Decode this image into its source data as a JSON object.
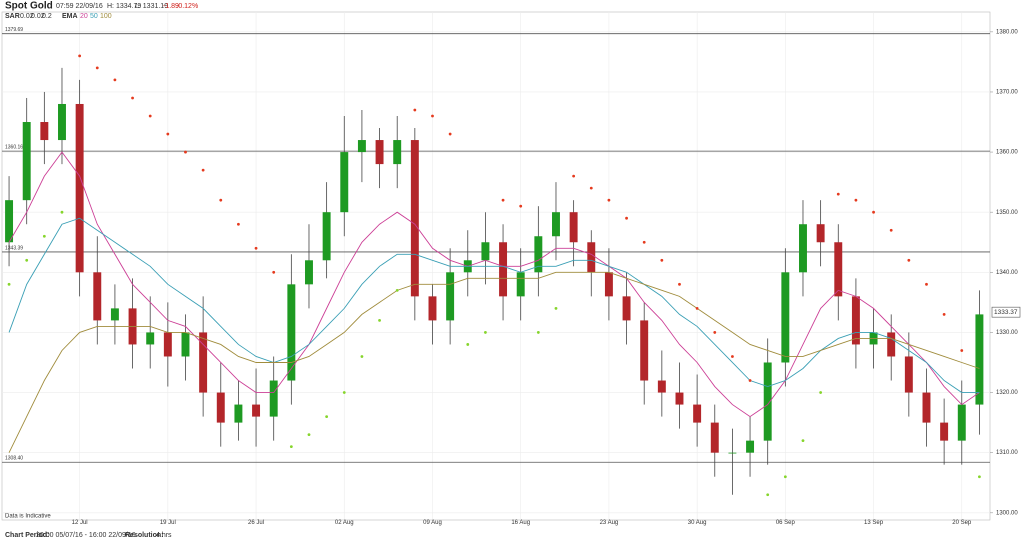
{
  "chart_data": {
    "type": "candlestick",
    "title": "Spot Gold",
    "header": {
      "time": "07:59 22/09/16",
      "high": "H: 1334.79",
      "low": "L: 1331.19",
      "change": "-1.89",
      "change_pct": "-0.12%",
      "sar_label": "SAR",
      "sar_params": [
        "0.02",
        "0.02",
        "0.2"
      ],
      "ema_label": "EMA"
    },
    "annotation": "Data is Indicative",
    "footer": {
      "period_label": "Chart Period:",
      "period": "20:00 05/07/16 - 16:00 22/09/16",
      "resolution_label": "Resolution:",
      "resolution": "4 hrs"
    },
    "xlim": [
      0.6,
      56.6
    ],
    "xticks": [
      {
        "value": 5,
        "label": "12 Jul"
      },
      {
        "value": 10,
        "label": "19 Jul"
      },
      {
        "value": 15,
        "label": "26 Jul"
      },
      {
        "value": 20,
        "label": "02 Aug"
      },
      {
        "value": 25,
        "label": "09 Aug"
      },
      {
        "value": 30,
        "label": "16 Aug"
      },
      {
        "value": 35,
        "label": "23 Aug"
      },
      {
        "value": 40,
        "label": "30 Aug"
      },
      {
        "value": 45,
        "label": "06 Sep"
      },
      {
        "value": 50,
        "label": "13 Sep"
      },
      {
        "value": 55,
        "label": "20 Sep"
      }
    ],
    "ylim": [
      1298.8,
      1383.3
    ],
    "yticks": [
      {
        "value": 1300,
        "label": "1300.00"
      },
      {
        "value": 1310,
        "label": "1310.00"
      },
      {
        "value": 1320,
        "label": "1320.00"
      },
      {
        "value": 1330,
        "label": "1330.00"
      },
      {
        "value": 1340,
        "label": "1340.00"
      },
      {
        "value": 1350,
        "label": "1350.00"
      },
      {
        "value": 1360,
        "label": "1360.00"
      },
      {
        "value": 1370,
        "label": "1370.00"
      },
      {
        "value": 1380,
        "label": "1380.00"
      }
    ],
    "grid": true,
    "levels": [
      1379.69,
      1360.16,
      1343.39,
      {
        "value": 1308.4,
        "label": "1308.40"
      }
    ],
    "last_price": 1333.37,
    "up_color": "#1e9a22",
    "down_color": "#b3262a",
    "x": [
      1,
      2,
      3,
      4,
      5,
      6,
      7,
      8,
      9,
      10,
      11,
      12,
      13,
      14,
      15,
      16,
      17,
      18,
      19,
      20,
      21,
      22,
      23,
      24,
      25,
      26,
      27,
      28,
      29,
      30,
      31,
      32,
      33,
      34,
      35,
      36,
      37,
      38,
      39,
      40,
      41,
      42,
      43,
      44,
      45,
      46,
      47,
      48,
      49,
      50,
      51,
      52,
      53,
      54,
      55,
      56
    ],
    "open": [
      1345,
      1352,
      1365,
      1362,
      1368,
      1340,
      1332,
      1334,
      1328,
      1330,
      1326,
      1330,
      1320,
      1315,
      1318,
      1316,
      1322,
      1338,
      1342,
      1350,
      1360,
      1362,
      1358,
      1362,
      1336,
      1332,
      1340,
      1342,
      1345,
      1336,
      1340,
      1346,
      1350,
      1345,
      1340,
      1336,
      1332,
      1322,
      1320,
      1318,
      1315,
      1310,
      1310,
      1312,
      1325,
      1340,
      1348,
      1345,
      1336,
      1328,
      1330,
      1326,
      1320,
      1315,
      1312,
      1318
    ],
    "high": [
      1356,
      1369,
      1370,
      1374,
      1372,
      1346,
      1338,
      1339,
      1336,
      1335,
      1333,
      1336,
      1325,
      1322,
      1324,
      1326,
      1343,
      1348,
      1355,
      1366,
      1367,
      1364,
      1366,
      1364,
      1338,
      1344,
      1347,
      1350,
      1348,
      1344,
      1351,
      1355,
      1352,
      1347,
      1344,
      1340,
      1335,
      1327,
      1325,
      1323,
      1318,
      1314,
      1316,
      1329,
      1344,
      1352,
      1352,
      1348,
      1339,
      1334,
      1333,
      1330,
      1324,
      1319,
      1322,
      1337
    ],
    "low": [
      1341,
      1348,
      1358,
      1358,
      1336,
      1328,
      1328,
      1324,
      1324,
      1321,
      1322,
      1316,
      1311,
      1312,
      1311,
      1312,
      1318,
      1334,
      1339,
      1346,
      1355,
      1354,
      1354,
      1332,
      1328,
      1328,
      1336,
      1338,
      1332,
      1332,
      1336,
      1342,
      1341,
      1336,
      1332,
      1328,
      1318,
      1316,
      1314,
      1311,
      1306,
      1303,
      1306,
      1308,
      1321,
      1336,
      1341,
      1332,
      1324,
      1324,
      1322,
      1316,
      1311,
      1308,
      1308,
      1313
    ],
    "close": [
      1352,
      1365,
      1362,
      1368,
      1340,
      1332,
      1334,
      1328,
      1330,
      1326,
      1330,
      1320,
      1315,
      1318,
      1316,
      1322,
      1338,
      1342,
      1350,
      1360,
      1362,
      1358,
      1362,
      1336,
      1332,
      1340,
      1342,
      1345,
      1336,
      1340,
      1346,
      1350,
      1345,
      1340,
      1336,
      1332,
      1322,
      1320,
      1318,
      1315,
      1310,
      1310,
      1312,
      1325,
      1340,
      1348,
      1345,
      1336,
      1328,
      1330,
      1326,
      1320,
      1315,
      1312,
      1318,
      1333
    ],
    "series": [
      {
        "name": "20",
        "color": "#cc3f96",
        "values": [
          1345,
          1350,
          1356,
          1360,
          1356,
          1348,
          1343,
          1338,
          1335,
          1332,
          1331,
          1328,
          1325,
          1322,
          1320,
          1320,
          1324,
          1328,
          1334,
          1340,
          1345,
          1348,
          1350,
          1348,
          1344,
          1342,
          1341,
          1342,
          1341,
          1341,
          1342,
          1344,
          1344,
          1343,
          1341,
          1339,
          1335,
          1332,
          1328,
          1325,
          1321,
          1318,
          1316,
          1318,
          1322,
          1328,
          1334,
          1337,
          1336,
          1334,
          1331,
          1328,
          1325,
          1321,
          1318,
          1320
        ]
      },
      {
        "name": "50",
        "color": "#3a9fb5",
        "values": [
          1330,
          1338,
          1343,
          1348,
          1349,
          1347,
          1345,
          1343,
          1341,
          1338,
          1336,
          1334,
          1331,
          1328,
          1326,
          1325,
          1326,
          1328,
          1331,
          1334,
          1338,
          1341,
          1343,
          1343,
          1342,
          1341,
          1341,
          1341,
          1341,
          1340,
          1341,
          1341,
          1342,
          1342,
          1341,
          1340,
          1338,
          1336,
          1333,
          1331,
          1328,
          1325,
          1322,
          1321,
          1322,
          1324,
          1327,
          1329,
          1330,
          1330,
          1329,
          1327,
          1325,
          1322,
          1320,
          1320
        ]
      },
      {
        "name": "100",
        "color": "#a08c3c",
        "values": [
          1310,
          1316,
          1322,
          1327,
          1330,
          1331,
          1331,
          1331,
          1331,
          1330,
          1330,
          1329,
          1328,
          1326,
          1325,
          1325,
          1325,
          1326,
          1328,
          1330,
          1333,
          1335,
          1337,
          1338,
          1338,
          1338,
          1339,
          1339,
          1339,
          1339,
          1339,
          1340,
          1340,
          1340,
          1340,
          1339,
          1338,
          1337,
          1336,
          1334,
          1332,
          1330,
          1328,
          1327,
          1326,
          1326,
          1327,
          1328,
          1329,
          1329,
          1329,
          1328,
          1327,
          1326,
          1325,
          1324
        ]
      }
    ],
    "sar": {
      "color_above": "#e53a1e",
      "color_below": "#86d52c",
      "values": [
        1338,
        1342,
        1346,
        1350,
        1376,
        1374,
        1372,
        1369,
        1366,
        1363,
        1360,
        1357,
        1352,
        1348,
        1344,
        1340,
        1311,
        1313,
        1316,
        1320,
        1326,
        1332,
        1337,
        1367,
        1366,
        1363,
        1328,
        1330,
        1352,
        1351,
        1330,
        1334,
        1356,
        1354,
        1352,
        1349,
        1345,
        1342,
        1338,
        1334,
        1330,
        1326,
        1322,
        1303,
        1306,
        1312,
        1320,
        1353,
        1352,
        1350,
        1347,
        1342,
        1338,
        1333,
        1327,
        1306
      ]
    }
  }
}
